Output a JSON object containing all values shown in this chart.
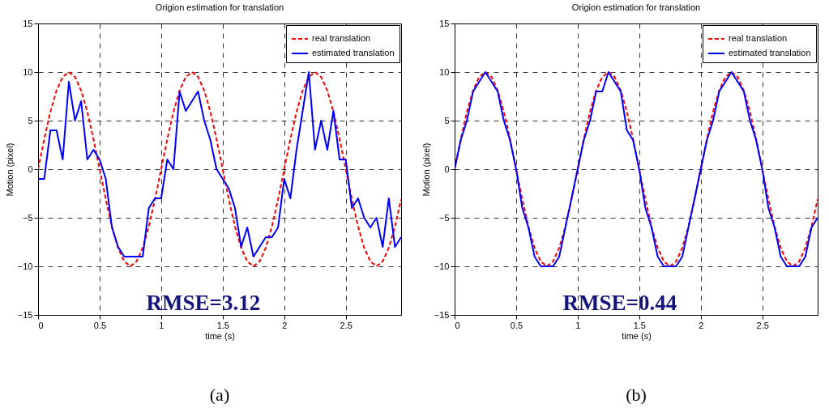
{
  "chart_data": [
    {
      "type": "line",
      "title": "Origion estimation for translation",
      "xlabel": "time (s)",
      "ylabel": "Motion (pixel)",
      "x": [
        0,
        0.05,
        0.1,
        0.15,
        0.2,
        0.25,
        0.3,
        0.35,
        0.4,
        0.45,
        0.5,
        0.55,
        0.6,
        0.65,
        0.7,
        0.75,
        0.8,
        0.85,
        0.9,
        0.95,
        1,
        1.05,
        1.1,
        1.15,
        1.2,
        1.25,
        1.3,
        1.35,
        1.4,
        1.45,
        1.5,
        1.55,
        1.6,
        1.65,
        1.7,
        1.75,
        1.8,
        1.85,
        1.9,
        1.95,
        2,
        2.05,
        2.1,
        2.15,
        2.2,
        2.25,
        2.3,
        2.35,
        2.4,
        2.45,
        2.5,
        2.55,
        2.6,
        2.65,
        2.7,
        2.75,
        2.8,
        2.85,
        2.9,
        2.95
      ],
      "series": [
        {
          "name": "real translation",
          "color": "#ff0000",
          "line_style": "dashed",
          "values": [
            0,
            3.1,
            5.9,
            8.1,
            9.5,
            10,
            9.5,
            8.1,
            5.9,
            3.1,
            0,
            -3.1,
            -5.9,
            -8.1,
            -9.5,
            -10,
            -9.5,
            -8.1,
            -5.9,
            -3.1,
            0,
            3.1,
            5.9,
            8.1,
            9.5,
            10,
            9.5,
            8.1,
            5.9,
            3.1,
            0,
            -3.1,
            -5.9,
            -8.1,
            -9.5,
            -10,
            -9.5,
            -8.1,
            -5.9,
            -3.1,
            0,
            3.1,
            5.9,
            8.1,
            9.5,
            10,
            9.5,
            8.1,
            5.9,
            3.1,
            0,
            -3.1,
            -5.9,
            -8.1,
            -9.5,
            -10,
            -9.5,
            -8.1,
            -5.9,
            -3.1
          ]
        },
        {
          "name": "estimated translation",
          "color": "#0000ff",
          "line_style": "solid",
          "values": [
            -1,
            -1,
            4,
            4,
            1,
            9,
            5,
            7,
            1,
            2,
            1,
            -1,
            -6,
            -8,
            -9,
            -9,
            -9,
            -9,
            -4,
            -3,
            -3,
            1,
            0,
            8,
            6,
            7,
            8,
            5,
            3,
            0,
            -1,
            -2,
            -4,
            -8,
            -6,
            -9,
            -8,
            -7,
            -7,
            -6,
            -1,
            -3,
            2,
            6,
            10,
            2,
            5,
            2,
            6,
            1,
            1,
            -4,
            -3,
            -5,
            -6,
            -5,
            -8,
            -3,
            -8,
            -7
          ]
        }
      ],
      "xlim": [
        0,
        2.95
      ],
      "ylim": [
        -15,
        15
      ],
      "xticks": [
        0,
        0.5,
        1,
        1.5,
        2,
        2.5
      ],
      "yticks": [
        -15,
        -10,
        -5,
        0,
        5,
        10,
        15
      ],
      "grid": true,
      "legend": "top right",
      "annotations": [
        "RMSE=3.12",
        "(a)"
      ]
    },
    {
      "type": "line",
      "title": "Origion estimation for translation",
      "xlabel": "time (s)",
      "ylabel": "Motion (pixel)",
      "x": [
        0,
        0.05,
        0.1,
        0.15,
        0.2,
        0.25,
        0.3,
        0.35,
        0.4,
        0.45,
        0.5,
        0.55,
        0.6,
        0.65,
        0.7,
        0.75,
        0.8,
        0.85,
        0.9,
        0.95,
        1,
        1.05,
        1.1,
        1.15,
        1.2,
        1.25,
        1.3,
        1.35,
        1.4,
        1.45,
        1.5,
        1.55,
        1.6,
        1.65,
        1.7,
        1.75,
        1.8,
        1.85,
        1.9,
        1.95,
        2,
        2.05,
        2.1,
        2.15,
        2.2,
        2.25,
        2.3,
        2.35,
        2.4,
        2.45,
        2.5,
        2.55,
        2.6,
        2.65,
        2.7,
        2.75,
        2.8,
        2.85,
        2.9,
        2.95
      ],
      "series": [
        {
          "name": "real translation",
          "color": "#ff0000",
          "line_style": "dashed",
          "values": [
            0,
            3.1,
            5.9,
            8.1,
            9.5,
            10,
            9.5,
            8.1,
            5.9,
            3.1,
            0,
            -3.1,
            -5.9,
            -8.1,
            -9.5,
            -10,
            -9.5,
            -8.1,
            -5.9,
            -3.1,
            0,
            3.1,
            5.9,
            8.1,
            9.5,
            10,
            9.5,
            8.1,
            5.9,
            3.1,
            0,
            -3.1,
            -5.9,
            -8.1,
            -9.5,
            -10,
            -9.5,
            -8.1,
            -5.9,
            -3.1,
            0,
            3.1,
            5.9,
            8.1,
            9.5,
            10,
            9.5,
            8.1,
            5.9,
            3.1,
            0,
            -3.1,
            -5.9,
            -8.1,
            -9.5,
            -10,
            -9.5,
            -8.1,
            -5.9,
            -3.1
          ]
        },
        {
          "name": "estimated translation",
          "color": "#0000ff",
          "line_style": "solid",
          "values": [
            0,
            3,
            5,
            8,
            9,
            10,
            9,
            8,
            5,
            3,
            0,
            -4,
            -6,
            -9,
            -10,
            -10,
            -10,
            -9,
            -6,
            -3,
            0,
            3,
            5,
            8,
            8,
            10,
            9,
            8,
            4,
            3,
            0,
            -4,
            -6,
            -9,
            -10,
            -10,
            -10,
            -9,
            -6,
            -3,
            0,
            3,
            5,
            8,
            9,
            10,
            9,
            8,
            5,
            3,
            0,
            -4,
            -6,
            -9,
            -10,
            -10,
            -10,
            -9,
            -6,
            -5
          ]
        }
      ],
      "xlim": [
        0,
        2.95
      ],
      "ylim": [
        -15,
        15
      ],
      "xticks": [
        0,
        0.5,
        1,
        1.5,
        2,
        2.5
      ],
      "yticks": [
        -15,
        -10,
        -5,
        0,
        5,
        10,
        15
      ],
      "grid": true,
      "legend": "top right",
      "annotations": [
        "RMSE=0.44",
        "(b)"
      ]
    }
  ]
}
